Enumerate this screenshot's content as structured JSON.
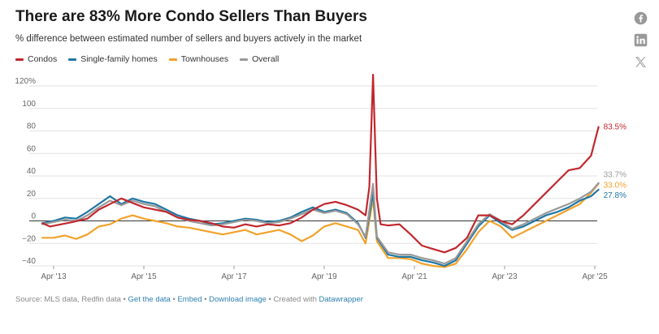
{
  "header": {
    "title": "There are 83% More Condo Sellers Than Buyers",
    "subtitle": "% difference between estimated number of sellers and buyers actively in the market"
  },
  "social": {
    "icons": [
      "facebook-icon",
      "linkedin-icon",
      "x-twitter-icon"
    ]
  },
  "footer": {
    "source": "Source: MLS data, Redfin data",
    "sep": " • ",
    "get_data": "Get the data",
    "embed": "Embed",
    "download": "Download image",
    "created": "Created with",
    "datawrapper": "Datawrapper"
  },
  "colors": {
    "condos": "#c1272d",
    "single_family": "#1f77a3",
    "townhouses": "#f2a22b",
    "overall": "#9a9a9a"
  },
  "chart_data": {
    "type": "line",
    "title": "There are 83% More Condo Sellers Than Buyers",
    "subtitle": "% difference between estimated number of sellers and buyers actively in the market",
    "xlabel": "",
    "ylabel": "",
    "x_ticks": [
      "Apr '13",
      "Apr '15",
      "Apr '17",
      "Apr '19",
      "Apr '21",
      "Apr '23",
      "Apr '25"
    ],
    "y_ticks": [
      "120%",
      "100",
      "80",
      "60",
      "40",
      "20",
      "0",
      "−20",
      "−40"
    ],
    "ylim": [
      -40,
      120
    ],
    "grid": "horizontal",
    "legend_position": "top-left",
    "series": [
      {
        "name": "Condos",
        "color": "#c1272d",
        "end_label": "83.5%",
        "points": [
          [
            "2013-01",
            -2
          ],
          [
            "2013-03",
            -5
          ],
          [
            "2013-06",
            -3
          ],
          [
            "2013-09",
            -1
          ],
          [
            "2014-01",
            2
          ],
          [
            "2014-04",
            10
          ],
          [
            "2014-07",
            15
          ],
          [
            "2014-10",
            20
          ],
          [
            "2015-01",
            16
          ],
          [
            "2015-04",
            12
          ],
          [
            "2015-07",
            10
          ],
          [
            "2015-10",
            8
          ],
          [
            "2016-01",
            3
          ],
          [
            "2016-04",
            1
          ],
          [
            "2016-07",
            0
          ],
          [
            "2016-10",
            -2
          ],
          [
            "2017-01",
            -5
          ],
          [
            "2017-04",
            -6
          ],
          [
            "2017-07",
            -3
          ],
          [
            "2017-10",
            -5
          ],
          [
            "2018-01",
            -3
          ],
          [
            "2018-04",
            -4
          ],
          [
            "2018-07",
            -2
          ],
          [
            "2018-10",
            3
          ],
          [
            "2019-01",
            10
          ],
          [
            "2019-04",
            15
          ],
          [
            "2019-07",
            17
          ],
          [
            "2019-10",
            14
          ],
          [
            "2020-01",
            10
          ],
          [
            "2020-03",
            5
          ],
          [
            "2020-04",
            30
          ],
          [
            "2020-05",
            130
          ],
          [
            "2020-06",
            20
          ],
          [
            "2020-07",
            -3
          ],
          [
            "2020-09",
            -4
          ],
          [
            "2020-12",
            -3
          ],
          [
            "2021-03",
            -12
          ],
          [
            "2021-06",
            -22
          ],
          [
            "2021-09",
            -25
          ],
          [
            "2021-12",
            -28
          ],
          [
            "2022-03",
            -24
          ],
          [
            "2022-06",
            -15
          ],
          [
            "2022-09",
            5
          ],
          [
            "2022-12",
            5
          ],
          [
            "2023-03",
            0
          ],
          [
            "2023-06",
            -3
          ],
          [
            "2023-09",
            5
          ],
          [
            "2023-12",
            15
          ],
          [
            "2024-03",
            25
          ],
          [
            "2024-06",
            35
          ],
          [
            "2024-09",
            45
          ],
          [
            "2024-12",
            47
          ],
          [
            "2025-03",
            58
          ],
          [
            "2025-05",
            83.5
          ]
        ]
      },
      {
        "name": "Single-family homes",
        "color": "#1f77a3",
        "end_label": "27.8%",
        "points": [
          [
            "2013-01",
            -2
          ],
          [
            "2013-04",
            0
          ],
          [
            "2013-07",
            3
          ],
          [
            "2013-10",
            2
          ],
          [
            "2014-01",
            8
          ],
          [
            "2014-04",
            15
          ],
          [
            "2014-07",
            22
          ],
          [
            "2014-10",
            15
          ],
          [
            "2015-01",
            20
          ],
          [
            "2015-04",
            17
          ],
          [
            "2015-07",
            15
          ],
          [
            "2015-10",
            10
          ],
          [
            "2016-01",
            5
          ],
          [
            "2016-04",
            2
          ],
          [
            "2016-07",
            0
          ],
          [
            "2016-10",
            -3
          ],
          [
            "2017-01",
            -2
          ],
          [
            "2017-04",
            0
          ],
          [
            "2017-07",
            2
          ],
          [
            "2017-10",
            1
          ],
          [
            "2018-01",
            -1
          ],
          [
            "2018-04",
            0
          ],
          [
            "2018-07",
            3
          ],
          [
            "2018-10",
            8
          ],
          [
            "2019-01",
            12
          ],
          [
            "2019-04",
            8
          ],
          [
            "2019-07",
            10
          ],
          [
            "2019-10",
            7
          ],
          [
            "2020-01",
            -2
          ],
          [
            "2020-03",
            -15
          ],
          [
            "2020-05",
            25
          ],
          [
            "2020-06",
            -15
          ],
          [
            "2020-09",
            -30
          ],
          [
            "2020-12",
            -32
          ],
          [
            "2021-03",
            -32
          ],
          [
            "2021-06",
            -35
          ],
          [
            "2021-09",
            -37
          ],
          [
            "2021-12",
            -40
          ],
          [
            "2022-03",
            -35
          ],
          [
            "2022-06",
            -20
          ],
          [
            "2022-09",
            -5
          ],
          [
            "2022-12",
            5
          ],
          [
            "2023-03",
            -2
          ],
          [
            "2023-06",
            -8
          ],
          [
            "2023-09",
            -5
          ],
          [
            "2023-12",
            0
          ],
          [
            "2024-03",
            5
          ],
          [
            "2024-06",
            8
          ],
          [
            "2024-09",
            12
          ],
          [
            "2024-12",
            18
          ],
          [
            "2025-03",
            22
          ],
          [
            "2025-05",
            27.8
          ]
        ]
      },
      {
        "name": "Townhouses",
        "color": "#f2a22b",
        "end_label": "33.0%",
        "points": [
          [
            "2013-01",
            -15
          ],
          [
            "2013-04",
            -15
          ],
          [
            "2013-07",
            -13
          ],
          [
            "2013-10",
            -16
          ],
          [
            "2014-01",
            -12
          ],
          [
            "2014-04",
            -5
          ],
          [
            "2014-07",
            -3
          ],
          [
            "2014-10",
            2
          ],
          [
            "2015-01",
            5
          ],
          [
            "2015-04",
            2
          ],
          [
            "2015-07",
            0
          ],
          [
            "2015-10",
            -2
          ],
          [
            "2016-01",
            -5
          ],
          [
            "2016-04",
            -6
          ],
          [
            "2016-07",
            -8
          ],
          [
            "2016-10",
            -10
          ],
          [
            "2017-01",
            -12
          ],
          [
            "2017-04",
            -10
          ],
          [
            "2017-07",
            -8
          ],
          [
            "2017-10",
            -12
          ],
          [
            "2018-01",
            -10
          ],
          [
            "2018-04",
            -8
          ],
          [
            "2018-07",
            -12
          ],
          [
            "2018-10",
            -18
          ],
          [
            "2019-01",
            -13
          ],
          [
            "2019-04",
            -5
          ],
          [
            "2019-07",
            -2
          ],
          [
            "2019-10",
            -5
          ],
          [
            "2020-01",
            -8
          ],
          [
            "2020-03",
            -20
          ],
          [
            "2020-05",
            20
          ],
          [
            "2020-06",
            -18
          ],
          [
            "2020-09",
            -33
          ],
          [
            "2020-12",
            -33
          ],
          [
            "2021-03",
            -34
          ],
          [
            "2021-06",
            -38
          ],
          [
            "2021-09",
            -40
          ],
          [
            "2021-12",
            -41
          ],
          [
            "2022-03",
            -38
          ],
          [
            "2022-06",
            -25
          ],
          [
            "2022-09",
            -10
          ],
          [
            "2022-12",
            0
          ],
          [
            "2023-03",
            -5
          ],
          [
            "2023-06",
            -15
          ],
          [
            "2023-09",
            -10
          ],
          [
            "2023-12",
            -5
          ],
          [
            "2024-03",
            0
          ],
          [
            "2024-06",
            5
          ],
          [
            "2024-09",
            10
          ],
          [
            "2024-12",
            15
          ],
          [
            "2025-03",
            25
          ],
          [
            "2025-05",
            33.0
          ]
        ]
      },
      {
        "name": "Overall",
        "color": "#9a9a9a",
        "end_label": "33.7%",
        "points": [
          [
            "2013-01",
            -3
          ],
          [
            "2013-04",
            -1
          ],
          [
            "2013-07",
            1
          ],
          [
            "2013-10",
            0
          ],
          [
            "2014-01",
            5
          ],
          [
            "2014-04",
            12
          ],
          [
            "2014-07",
            18
          ],
          [
            "2014-10",
            14
          ],
          [
            "2015-01",
            18
          ],
          [
            "2015-04",
            15
          ],
          [
            "2015-07",
            13
          ],
          [
            "2015-10",
            8
          ],
          [
            "2016-01",
            3
          ],
          [
            "2016-04",
            0
          ],
          [
            "2016-07",
            -2
          ],
          [
            "2016-10",
            -4
          ],
          [
            "2017-01",
            -3
          ],
          [
            "2017-04",
            -1
          ],
          [
            "2017-07",
            1
          ],
          [
            "2017-10",
            0
          ],
          [
            "2018-01",
            -2
          ],
          [
            "2018-04",
            -1
          ],
          [
            "2018-07",
            2
          ],
          [
            "2018-10",
            6
          ],
          [
            "2019-01",
            10
          ],
          [
            "2019-04",
            7
          ],
          [
            "2019-07",
            9
          ],
          [
            "2019-10",
            6
          ],
          [
            "2020-01",
            -3
          ],
          [
            "2020-03",
            -14
          ],
          [
            "2020-05",
            33
          ],
          [
            "2020-06",
            -14
          ],
          [
            "2020-09",
            -28
          ],
          [
            "2020-12",
            -30
          ],
          [
            "2021-03",
            -30
          ],
          [
            "2021-06",
            -33
          ],
          [
            "2021-09",
            -35
          ],
          [
            "2021-12",
            -38
          ],
          [
            "2022-03",
            -33
          ],
          [
            "2022-06",
            -18
          ],
          [
            "2022-09",
            -3
          ],
          [
            "2022-12",
            6
          ],
          [
            "2023-03",
            0
          ],
          [
            "2023-06",
            -7
          ],
          [
            "2023-09",
            -3
          ],
          [
            "2023-12",
            2
          ],
          [
            "2024-03",
            7
          ],
          [
            "2024-06",
            11
          ],
          [
            "2024-09",
            15
          ],
          [
            "2024-12",
            20
          ],
          [
            "2025-03",
            26
          ],
          [
            "2025-05",
            33.7
          ]
        ]
      }
    ]
  }
}
